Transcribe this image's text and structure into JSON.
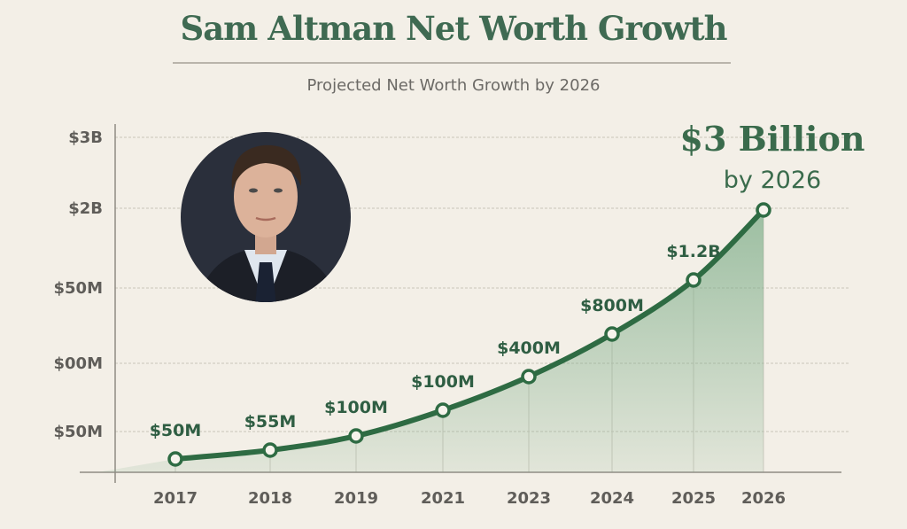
{
  "header": {
    "title": "Sam Altman Net Worth Growth",
    "subtitle": "Projected Net Worth Growth by 2026"
  },
  "callout": {
    "headline": "$3 Billion",
    "subline": "by 2026"
  },
  "portrait": {
    "description_icon": "portrait-photo"
  },
  "colors": {
    "background": "#f3efe7",
    "line": "#2e6b43",
    "fill": "#7fae8a",
    "title": "#3f6a52",
    "axis_text": "#5f5d59"
  },
  "chart_data": {
    "type": "area",
    "title": "Sam Altman Net Worth Growth",
    "subtitle": "Projected Net Worth Growth by 2026",
    "xlabel": "",
    "ylabel": "",
    "y_tick_labels": [
      "$50M",
      "$00M",
      "$50M",
      "$2B",
      "$3B"
    ],
    "categories": [
      "2017",
      "2018",
      "2019",
      "2021",
      "2023",
      "2024",
      "2025",
      "2026"
    ],
    "values_usd_millions": [
      50,
      55,
      100,
      100,
      400,
      800,
      1200,
      3000
    ],
    "data_labels": [
      "$50M",
      "$55M",
      "$100M",
      "$100M",
      "$400M",
      "$800M",
      "$1.2B",
      ""
    ],
    "grid": true,
    "legend": "none",
    "markers": "hollow-circle"
  }
}
